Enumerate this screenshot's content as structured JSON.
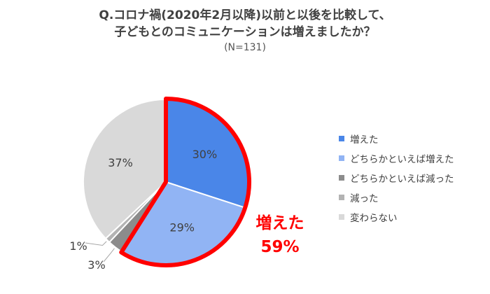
{
  "title_line1": "Q.コロナ禍(2020年2月以降)以前と以後を比較して、",
  "title_line2": "子どもとのコミュニケーションは増えましたか？",
  "subtitle": "(N=131)",
  "callout": {
    "label": "増えた",
    "value": "59%",
    "color": "#ff0000"
  },
  "chart_data": {
    "type": "pie",
    "title": "Q.コロナ禍(2020年2月以降)以前と以後を比較して、子どもとのコミュニケーションは増えましたか？",
    "subtitle": "(N=131)",
    "legend_position": "right",
    "slices": [
      {
        "label": "増えた",
        "value": 30,
        "display": "30%",
        "color": "#4a86e8"
      },
      {
        "label": "どちらかといえば増えた",
        "value": 29,
        "display": "29%",
        "color": "#91b4f4"
      },
      {
        "label": "どちらかといえば減った",
        "value": 3,
        "display": "3%",
        "color": "#8c8c8c"
      },
      {
        "label": "減った",
        "value": 1,
        "display": "1%",
        "color": "#b3b3b3"
      },
      {
        "label": "変わらない",
        "value": 37,
        "display": "37%",
        "color": "#d9d9d9"
      }
    ]
  }
}
